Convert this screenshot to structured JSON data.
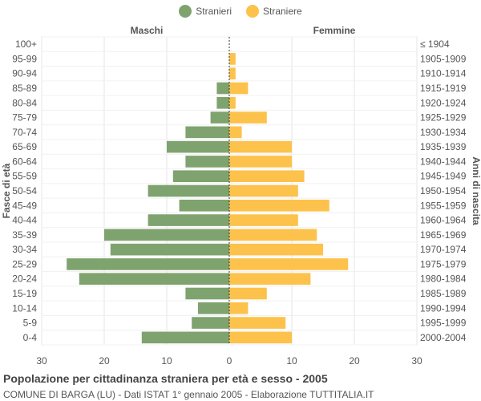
{
  "legend": [
    {
      "label": "Stranieri",
      "color": "#7fa36f"
    },
    {
      "label": "Straniere",
      "color": "#fcc24b"
    }
  ],
  "chart_data": {
    "type": "bar",
    "orientation": "horizontal",
    "title": "Popolazione per cittadinanza straniera per età e sesso - 2005",
    "subtitle": "COMUNE DI BARGA (LU) - Dati ISTAT 1° gennaio 2005 - Elaborazione TUTTITALIA.IT",
    "left_header": "Maschi",
    "right_header": "Femmine",
    "ylabel_left": "Fasce di età",
    "ylabel_right": "Anni di nascita",
    "xlim": [
      -30,
      30
    ],
    "x_ticks": [
      -30,
      -20,
      -10,
      0,
      10,
      20,
      30
    ],
    "x_tick_labels": [
      "30",
      "20",
      "10",
      "0",
      "10",
      "20",
      "30"
    ],
    "grid": true,
    "legend_position": "top-center",
    "categories": [
      "100+",
      "95-99",
      "90-94",
      "85-89",
      "80-84",
      "75-79",
      "70-74",
      "65-69",
      "60-64",
      "55-59",
      "50-54",
      "45-49",
      "40-44",
      "35-39",
      "30-34",
      "25-29",
      "20-24",
      "15-19",
      "10-14",
      "5-9",
      "0-4"
    ],
    "birth_years": [
      "≤ 1904",
      "1905-1909",
      "1910-1914",
      "1915-1919",
      "1920-1924",
      "1925-1929",
      "1930-1934",
      "1935-1939",
      "1940-1944",
      "1945-1949",
      "1950-1954",
      "1955-1959",
      "1960-1964",
      "1965-1969",
      "1970-1974",
      "1975-1979",
      "1980-1984",
      "1985-1989",
      "1990-1994",
      "1995-1999",
      "2000-2004"
    ],
    "series": [
      {
        "name": "Stranieri",
        "color": "#7fa36f",
        "values": [
          0,
          0,
          0,
          2,
          2,
          3,
          7,
          10,
          7,
          9,
          13,
          8,
          13,
          20,
          19,
          26,
          24,
          7,
          5,
          6,
          14
        ]
      },
      {
        "name": "Straniere",
        "color": "#fcc24b",
        "values": [
          0,
          1,
          1,
          3,
          1,
          6,
          2,
          10,
          10,
          12,
          11,
          16,
          11,
          14,
          15,
          19,
          13,
          6,
          3,
          9,
          10
        ]
      }
    ]
  }
}
